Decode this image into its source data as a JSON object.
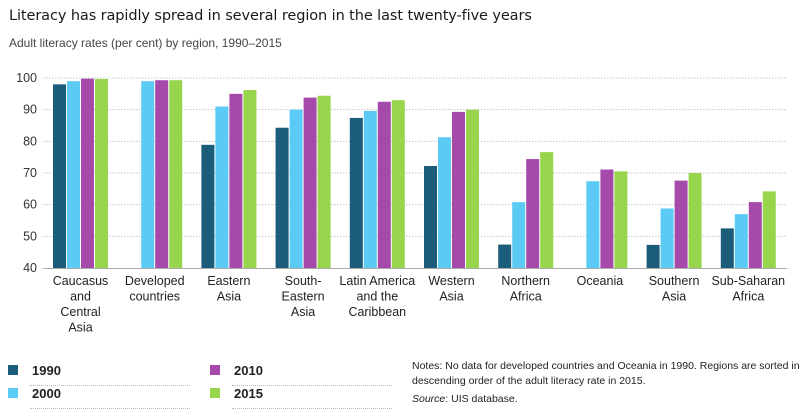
{
  "title": "Literacy has rapidly spread in several region in the last twenty-five years",
  "subtitle": "Adult literacy rates (per cent) by region, 1990–2015",
  "notes": "Notes: No data for developed countries and Oceania in 1990. Regions are sorted in descending order of the adult literacy rate in 2015.",
  "source_label": "Source",
  "source_text": ": UIS database.",
  "legend": [
    {
      "label": "1990",
      "color": "#1a5c7a"
    },
    {
      "label": "2000",
      "color": "#5bcbf5"
    },
    {
      "label": "2010",
      "color": "#a54aab"
    },
    {
      "label": "2015",
      "color": "#97d54d"
    }
  ],
  "chart_data": {
    "type": "bar",
    "title": "Literacy has rapidly spread in several region in the last twenty-five years",
    "subtitle": "Adult literacy rates (per cent) by region, 1990–2015",
    "xlabel": "",
    "ylabel": "",
    "ylim": [
      40,
      100
    ],
    "yticks": [
      40,
      50,
      60,
      70,
      80,
      90,
      100
    ],
    "grid": true,
    "legend_position": "bottom-left",
    "categories": [
      [
        "Caucasus",
        "and",
        "Central",
        "Asia"
      ],
      [
        "Developed",
        "countries"
      ],
      [
        "Eastern",
        "Asia"
      ],
      [
        "South-",
        "Eastern",
        "Asia"
      ],
      [
        "Latin America",
        "and the",
        "Caribbean"
      ],
      [
        "Western",
        "Asia"
      ],
      [
        "Northern",
        "Africa"
      ],
      [
        "Oceania"
      ],
      [
        "Southern",
        "Asia"
      ],
      [
        "Sub-Saharan",
        "Africa"
      ]
    ],
    "series": [
      {
        "name": "1990",
        "color": "#1a5c7a",
        "values": [
          98.0,
          null,
          78.9,
          84.3,
          87.4,
          72.2,
          47.4,
          null,
          47.3,
          52.5
        ]
      },
      {
        "name": "2000",
        "color": "#5bcbf5",
        "values": [
          99.0,
          99.0,
          91.0,
          90.0,
          89.6,
          81.3,
          60.8,
          67.4,
          58.8,
          57.0
        ]
      },
      {
        "name": "2010",
        "color": "#a54aab",
        "values": [
          99.8,
          99.3,
          95.0,
          93.8,
          92.5,
          89.3,
          74.4,
          71.1,
          67.6,
          60.8
        ]
      },
      {
        "name": "2015",
        "color": "#97d54d",
        "values": [
          99.7,
          99.3,
          96.2,
          94.4,
          93.0,
          90.0,
          76.6,
          70.5,
          70.0,
          64.2
        ]
      }
    ]
  }
}
